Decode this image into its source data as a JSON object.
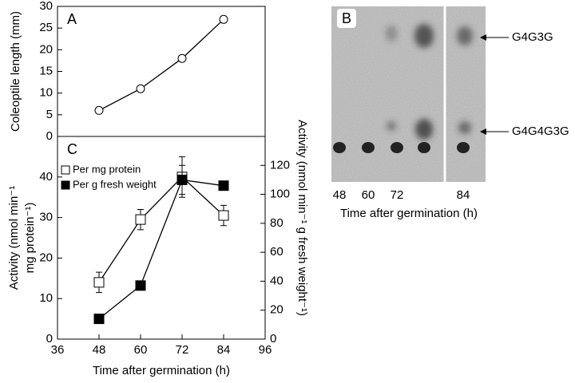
{
  "chart_data": [
    {
      "type": "line",
      "panel_label": "A",
      "ylabel": "Coleoptile length (mm)",
      "x": [
        48,
        60,
        72,
        84
      ],
      "xlim": [
        36,
        96
      ],
      "series": [
        {
          "values": [
            6,
            11,
            18,
            27
          ],
          "color": "#000000",
          "marker": "circle-open"
        }
      ],
      "ylim": [
        0,
        30
      ],
      "yticks": [
        0,
        5,
        10,
        15,
        20,
        25,
        30
      ]
    },
    {
      "type": "line",
      "panel_label": "C",
      "ylabel": [
        "Activity (nmol min⁻¹",
        "mg protein⁻¹)"
      ],
      "y2label": "Activity (nmol min⁻¹ g fresh weight⁻¹)",
      "xlabel": "Time after germination (h)",
      "x": [
        48,
        60,
        72,
        84
      ],
      "xlim": [
        36,
        96
      ],
      "xticks": [
        36,
        48,
        60,
        72,
        84,
        96
      ],
      "ylim": [
        0,
        50
      ],
      "yticks": [
        0,
        10,
        20,
        30,
        40
      ],
      "y2lim": [
        0,
        140
      ],
      "y2ticks": [
        0,
        20,
        40,
        60,
        80,
        100,
        120
      ],
      "legend": "upper-left",
      "series": [
        {
          "name": "Per mg protein",
          "color": "#000000",
          "marker": "square-open",
          "values": [
            14,
            29.5,
            40,
            30.5
          ],
          "errors": [
            2.5,
            2.5,
            5,
            2.5
          ]
        },
        {
          "name": "Per g fresh weight",
          "color": "#000000",
          "marker": "square-filled",
          "axis": "y2",
          "values": [
            14,
            37,
            110,
            106
          ],
          "errors": [
            1,
            2.5,
            10,
            3
          ]
        }
      ]
    }
  ],
  "gel": {
    "panel_label": "B",
    "bands": [
      "G4G3G",
      "G4G4G3G"
    ],
    "lanes": [
      "48",
      "60",
      "72",
      "84"
    ],
    "xlabel": "Time after germination (h)"
  }
}
